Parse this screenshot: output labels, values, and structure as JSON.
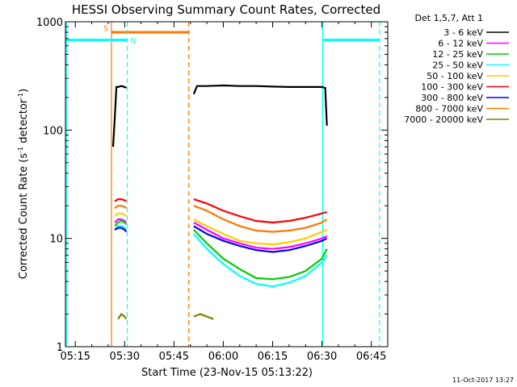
{
  "chart_data": {
    "type": "line",
    "title": "HESSI Observing Summary Count Rates, Corrected",
    "xlabel": "Start Time (23-Nov-15 05:13:22)",
    "ylabel_main": "Corrected Count Rate (s",
    "ylabel_sup1": "-1",
    "ylabel_mid": " detector",
    "ylabel_sup2": "-1",
    "ylabel_end": ")",
    "y_scale": "log",
    "ylim": [
      1,
      1000
    ],
    "xlim_minutes": [
      312,
      410
    ],
    "x_ticks": [
      {
        "minute": 315,
        "label": "05:15"
      },
      {
        "minute": 330,
        "label": "05:30"
      },
      {
        "minute": 345,
        "label": "05:45"
      },
      {
        "minute": 360,
        "label": "06:00"
      },
      {
        "minute": 375,
        "label": "06:15"
      },
      {
        "minute": 390,
        "label": "06:30"
      },
      {
        "minute": 405,
        "label": "06:45"
      }
    ],
    "y_ticks": [
      {
        "value": 1,
        "label": "1"
      },
      {
        "value": 10,
        "label": "10"
      },
      {
        "value": 100,
        "label": "100"
      },
      {
        "value": 1000,
        "label": "1000"
      }
    ],
    "legend_title": "Det 1,5,7, Att 1",
    "legend_placement": "right",
    "footer_date": "11-Oct-2017 13:27",
    "series": [
      {
        "name": "3 - 6 keV",
        "color": "#000000",
        "segments": [
          {
            "x": [
              326.5,
              327,
              327.5,
              328,
              329,
              330,
              330.5
            ],
            "y": [
              70,
              130,
              250,
              250,
              255,
              250,
              245
            ]
          },
          {
            "x": [
              351,
              352,
              355,
              360,
              365,
              370,
              375,
              380,
              385,
              390,
              391,
              391.5
            ],
            "y": [
              215,
              255,
              255,
              258,
              255,
              255,
              252,
              250,
              250,
              250,
              245,
              110
            ]
          }
        ]
      },
      {
        "name": "6 - 12 keV",
        "color": "#ff00ff",
        "segments": [
          {
            "x": [
              327,
              328,
              329,
              330,
              330.5
            ],
            "y": [
              14,
              15,
              15,
              14.5,
              14
            ]
          },
          {
            "x": [
              351,
              355,
              360,
              365,
              370,
              375,
              380,
              385,
              390,
              391.5
            ],
            "y": [
              14,
              12,
              10,
              9,
              8.2,
              8,
              8.3,
              9,
              10,
              10.5
            ]
          }
        ]
      },
      {
        "name": "12 - 25 keV",
        "color": "#00cc00",
        "segments": [
          {
            "x": [
              327,
              328,
              329,
              330,
              330.5
            ],
            "y": [
              13,
              14,
              14.5,
              14,
              13.5
            ]
          },
          {
            "x": [
              351,
              355,
              360,
              365,
              370,
              375,
              380,
              385,
              390,
              391.5
            ],
            "y": [
              12,
              9,
              6.5,
              5.2,
              4.3,
              4.2,
              4.4,
              5,
              6.5,
              8
            ]
          }
        ]
      },
      {
        "name": "25 - 50 keV",
        "color": "#00ffff",
        "segments": [
          {
            "x": [
              327,
              328,
              329,
              330,
              330.5
            ],
            "y": [
              12,
              13,
              13,
              12.5,
              12
            ]
          },
          {
            "x": [
              351,
              355,
              360,
              365,
              370,
              375,
              380,
              385,
              390,
              391.5
            ],
            "y": [
              11,
              8,
              5.8,
              4.5,
              3.8,
              3.6,
              3.9,
              4.5,
              6,
              7
            ]
          }
        ]
      },
      {
        "name": "50 - 100 keV",
        "color": "#ffcc00",
        "segments": [
          {
            "x": [
              327,
              328,
              329,
              330,
              330.5
            ],
            "y": [
              16,
              17,
              17,
              16.5,
              16
            ]
          },
          {
            "x": [
              351,
              355,
              360,
              365,
              370,
              375,
              380,
              385,
              390,
              391.5
            ],
            "y": [
              15,
              13,
              11,
              9.5,
              9,
              8.8,
              9.2,
              10,
              11.5,
              12
            ]
          }
        ]
      },
      {
        "name": "100 - 300 keV",
        "color": "#ff0000",
        "segments": [
          {
            "x": [
              327,
              328,
              329,
              330,
              330.5
            ],
            "y": [
              22,
              23,
              23,
              22.5,
              22
            ]
          },
          {
            "x": [
              351,
              355,
              360,
              365,
              370,
              375,
              380,
              385,
              390,
              391.5
            ],
            "y": [
              23,
              21,
              18,
              16,
              14.5,
              14,
              14.5,
              15.5,
              17,
              17.5
            ]
          }
        ]
      },
      {
        "name": "300 - 800 keV",
        "color": "#0000ff",
        "segments": [
          {
            "x": [
              327,
              328,
              329,
              330,
              330.5
            ],
            "y": [
              12,
              12.5,
              12.5,
              12,
              11.5
            ]
          },
          {
            "x": [
              351,
              355,
              360,
              365,
              370,
              375,
              380,
              385,
              390,
              391.5
            ],
            "y": [
              13,
              11,
              9.5,
              8.5,
              7.8,
              7.5,
              7.8,
              8.5,
              9.5,
              10
            ]
          }
        ]
      },
      {
        "name": "800 - 7000 keV",
        "color": "#ff7700",
        "segments": [
          {
            "x": [
              327,
              328,
              329,
              330,
              330.5
            ],
            "y": [
              19,
              20,
              20,
              19.5,
              19
            ]
          },
          {
            "x": [
              351,
              355,
              360,
              365,
              370,
              375,
              380,
              385,
              390,
              391.5
            ],
            "y": [
              20,
              18,
              15,
              13,
              11.8,
              11.5,
              11.8,
              12.5,
              14,
              15
            ]
          }
        ]
      },
      {
        "name": "7000 - 20000 keV",
        "color": "#808000",
        "segments": [
          {
            "x": [
              328,
              329,
              330,
              330.5
            ],
            "y": [
              1.8,
              2,
              1.9,
              1.8
            ]
          },
          {
            "x": [
              351,
              353,
              355,
              357
            ],
            "y": [
              1.9,
              2,
              1.9,
              1.8
            ]
          }
        ]
      }
    ],
    "annotations": [
      {
        "type": "vline",
        "minute": 326,
        "style": "solid",
        "color": "#ff7700"
      },
      {
        "type": "vline",
        "minute": 349.5,
        "style": "dashed",
        "color": "#ff7700"
      },
      {
        "type": "hbar",
        "x0": 326,
        "x1": 349.5,
        "value": 800,
        "color": "#ff7700",
        "label": "S"
      },
      {
        "type": "vline",
        "minute": 312.3,
        "style": "solid",
        "color": "#00ffff"
      },
      {
        "type": "vline",
        "minute": 330.8,
        "style": "dashed",
        "color": "#00ffff"
      },
      {
        "type": "vline",
        "minute": 390.2,
        "style": "solid",
        "color": "#00ffff"
      },
      {
        "type": "vline",
        "minute": 407.5,
        "style": "dashed",
        "color": "#00ffff"
      },
      {
        "type": "hbar",
        "x0": 312,
        "x1": 330.8,
        "value": 680,
        "color": "#00ffff",
        "label": "N"
      },
      {
        "type": "hbar",
        "x0": 390.2,
        "x1": 407.5,
        "value": 680,
        "color": "#00ffff",
        "label": ""
      }
    ]
  }
}
